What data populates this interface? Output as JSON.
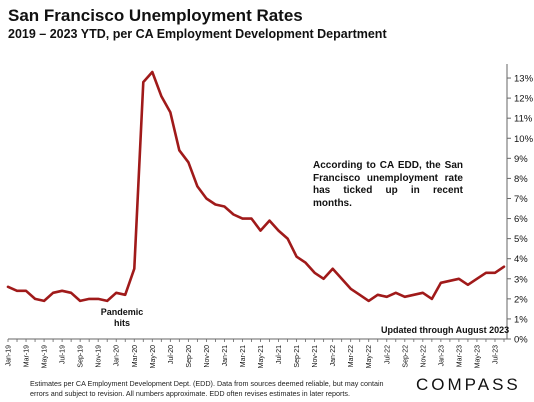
{
  "title": "San Francisco Unemployment Rates",
  "subtitle": "2019 – 2023 YTD, per CA Employment Development Department",
  "annotation_text": "According to CA EDD, the San Francisco unemployment rate has ticked up in recent months.",
  "pandemic_note": "Pandemic hits",
  "updated_note": "Updated through August 2023",
  "footnote": "Estimates per CA Employment Development Dept. (EDD). Data from sources deemed reliable, but may contain errors and subject to revision. All numbers approximate. EDD often revises estimates in later reports.",
  "brand": "COMPASS",
  "colors": {
    "line": "#a01a1a",
    "axis": "#666666",
    "text": "#111111"
  },
  "chart_data": {
    "type": "line",
    "title": "San Francisco Unemployment Rates",
    "subtitle": "2019 – 2023 YTD, per CA Employment Development Department",
    "xlabel": "",
    "ylabel": "",
    "ylim": [
      0,
      13.5
    ],
    "y_ticks": [
      0,
      1,
      2,
      3,
      4,
      5,
      6,
      7,
      8,
      9,
      10,
      11,
      12,
      13
    ],
    "y_tick_labels": [
      "0%",
      "1%",
      "2%",
      "3%",
      "4%",
      "5%",
      "6%",
      "7%",
      "8%",
      "9%",
      "10%",
      "11%",
      "12%",
      "13%"
    ],
    "y_axis_side": "right",
    "grid": false,
    "x_tick_labels": [
      "Jan-19",
      "Mar-19",
      "May-19",
      "Jul-19",
      "Sep-19",
      "Nov-19",
      "Jan-20",
      "Mar-20",
      "May-20",
      "Jul-20",
      "Sep-20",
      "Nov-20",
      "Jan-21",
      "Mar-21",
      "May-21",
      "Jul-21",
      "Sep-21",
      "Nov-21",
      "Jan-22",
      "Mar-22",
      "May-22",
      "Jul-22",
      "Sep-22",
      "Nov-22",
      "Jan-23",
      "Mar-23",
      "May-23",
      "Jul-23"
    ],
    "months": [
      "Jan-19",
      "Feb-19",
      "Mar-19",
      "Apr-19",
      "May-19",
      "Jun-19",
      "Jul-19",
      "Aug-19",
      "Sep-19",
      "Oct-19",
      "Nov-19",
      "Dec-19",
      "Jan-20",
      "Feb-20",
      "Mar-20",
      "Apr-20",
      "May-20",
      "Jun-20",
      "Jul-20",
      "Aug-20",
      "Sep-20",
      "Oct-20",
      "Nov-20",
      "Dec-20",
      "Jan-21",
      "Feb-21",
      "Mar-21",
      "Apr-21",
      "May-21",
      "Jun-21",
      "Jul-21",
      "Aug-21",
      "Sep-21",
      "Oct-21",
      "Nov-21",
      "Dec-21",
      "Jan-22",
      "Feb-22",
      "Mar-22",
      "Apr-22",
      "May-22",
      "Jun-22",
      "Jul-22",
      "Aug-22",
      "Sep-22",
      "Oct-22",
      "Nov-22",
      "Dec-22",
      "Jan-23",
      "Feb-23",
      "Mar-23",
      "Apr-23",
      "May-23",
      "Jun-23",
      "Jul-23",
      "Aug-23"
    ],
    "series": [
      {
        "values": [
          2.6,
          2.4,
          2.4,
          2.0,
          1.9,
          2.3,
          2.4,
          2.3,
          1.9,
          2.0,
          2.0,
          1.9,
          2.3,
          2.2,
          3.5,
          12.8,
          13.3,
          12.1,
          11.3,
          9.4,
          8.8,
          7.6,
          7.0,
          6.7,
          6.6,
          6.2,
          6.0,
          6.0,
          5.4,
          5.9,
          5.4,
          5.0,
          4.1,
          3.8,
          3.3,
          3.0,
          3.5,
          3.0,
          2.5,
          2.2,
          1.9,
          2.2,
          2.1,
          2.3,
          2.1,
          2.2,
          2.3,
          2.0,
          2.8,
          2.9,
          3.0,
          2.7,
          3.0,
          3.3,
          3.3,
          3.6
        ]
      }
    ]
  }
}
